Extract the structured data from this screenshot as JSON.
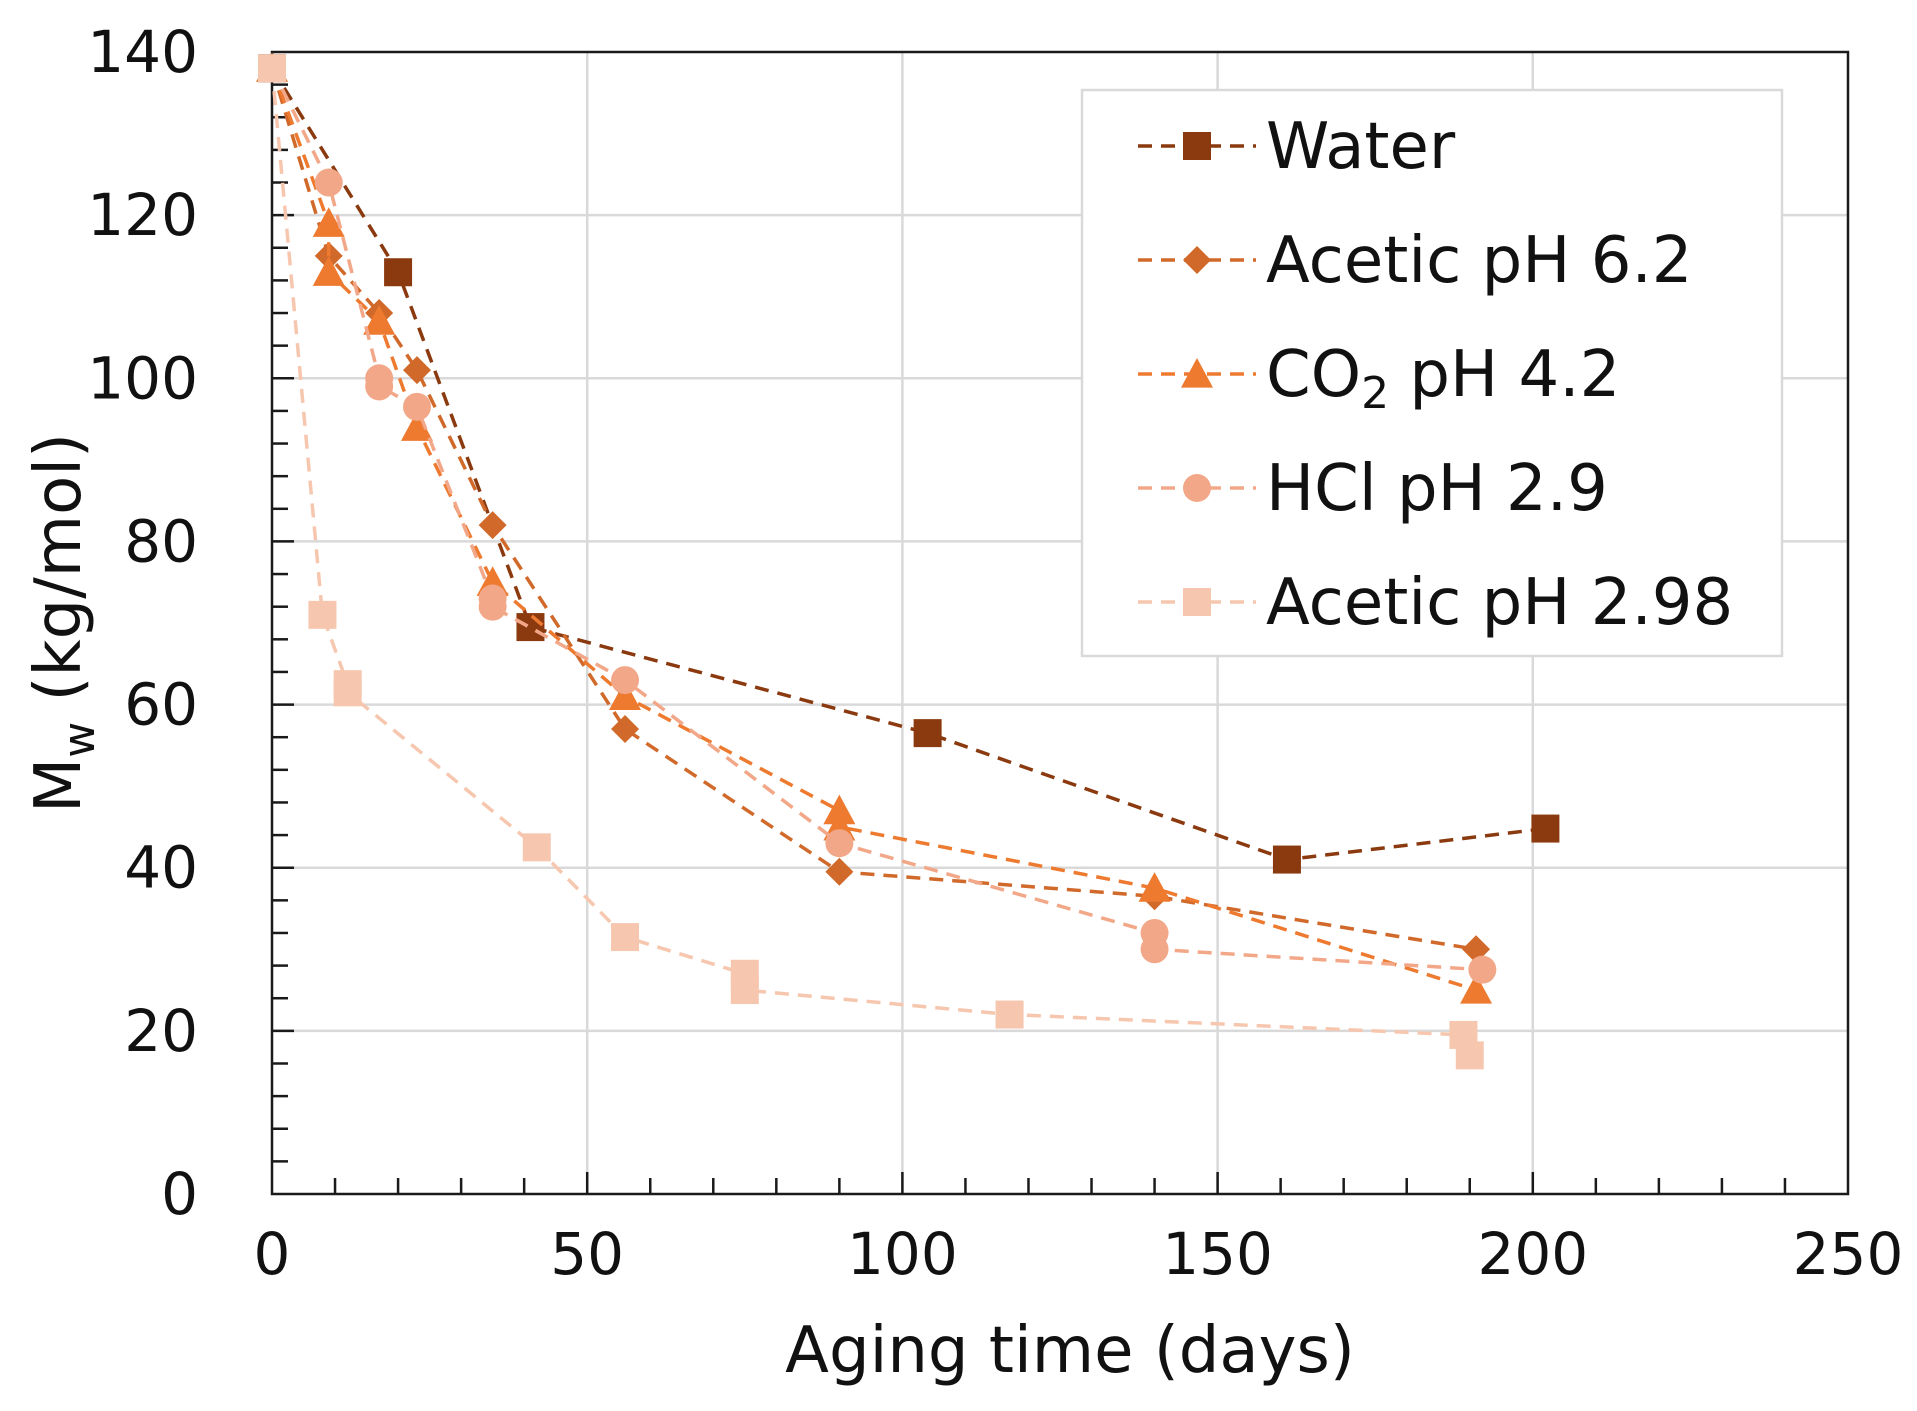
{
  "chart_data": {
    "type": "line",
    "title": "",
    "xlabel": "Aging time (days)",
    "ylabel_main": "M",
    "ylabel_sub": "w",
    "ylabel_rest": " (kg/mol)",
    "xlim": [
      0,
      250
    ],
    "ylim": [
      0,
      140
    ],
    "xticks": [
      0,
      50,
      100,
      150,
      200,
      250
    ],
    "yticks": [
      0,
      20,
      40,
      60,
      80,
      100,
      120,
      140
    ],
    "x_minor_step": 10,
    "y_minor_step": 4,
    "grid": true,
    "legend_position": "top-right",
    "series": [
      {
        "name": "Water",
        "name_main": "Water",
        "name_sub": "",
        "name_rest": "",
        "color": "#8B3A0F",
        "marker": "square",
        "x": [
          0,
          20,
          41,
          104,
          161,
          202
        ],
        "y": [
          138,
          113,
          69.5,
          56.5,
          41,
          44.8
        ]
      },
      {
        "name": "Acetic pH 6.2",
        "name_main": "Acetic pH 6.2",
        "name_sub": "",
        "name_rest": "",
        "color": "#D0692A",
        "marker": "diamond",
        "x": [
          0,
          9,
          17,
          23,
          35,
          56,
          90,
          140,
          191
        ],
        "y": [
          138,
          115,
          108,
          101,
          82,
          57,
          39.5,
          36.5,
          30
        ]
      },
      {
        "name": "CO2 pH 4.2",
        "name_main": "CO",
        "name_sub": "2",
        "name_rest": " pH 4.2",
        "color": "#EE7A30",
        "marker": "triangle",
        "x": [
          0,
          9,
          9,
          17,
          23,
          35,
          56,
          90,
          90,
          140,
          191
        ],
        "y": [
          138,
          119,
          113,
          107,
          94,
          75,
          61,
          47,
          45,
          37.5,
          25
        ]
      },
      {
        "name": "HCl pH 2.9",
        "name_main": "HCl pH 2.9",
        "name_sub": "",
        "name_rest": "",
        "color": "#F2A888",
        "marker": "circle",
        "x": [
          0,
          9,
          17,
          17,
          23,
          35,
          35,
          56,
          90,
          140,
          140,
          192
        ],
        "y": [
          138,
          124,
          100,
          99,
          96.5,
          73,
          72,
          63,
          43,
          32,
          30,
          27.5
        ]
      },
      {
        "name": "Acetic pH 2.98",
        "name_main": "Acetic pH 2.98",
        "name_sub": "",
        "name_rest": "",
        "color": "#F6C7AE",
        "marker": "square",
        "x": [
          0,
          8,
          12,
          12,
          42,
          56,
          75,
          75,
          117,
          189,
          190
        ],
        "y": [
          138,
          71,
          62.5,
          61.5,
          42.5,
          31.5,
          27,
          25,
          22,
          19.5,
          17
        ]
      }
    ]
  }
}
